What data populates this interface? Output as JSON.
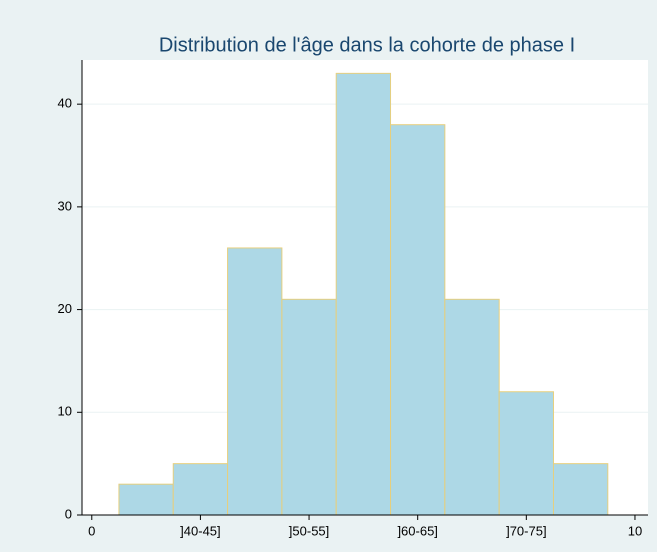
{
  "chart_data": {
    "type": "histogram",
    "title": "Distribution de l'âge dans la cohorte de phase I",
    "bins": [
      0.5,
      1.5,
      2.5,
      3.5,
      4.5,
      5.5,
      6.5,
      7.5,
      8.5,
      9.5
    ],
    "counts": [
      3,
      5,
      26,
      21,
      43,
      38,
      21,
      12,
      5
    ],
    "color": "#add8e6",
    "edgecolor": "#e6cf7e",
    "xlim": [
      -0.18,
      10.24
    ],
    "ylim": [
      0,
      44.3
    ],
    "xticks": [
      0,
      {
        "value": 2,
        "label": "]40-45]"
      },
      {
        "value": 4,
        "label": "]50-55]"
      },
      {
        "value": 6,
        "label": "]60-65]"
      },
      {
        "value": 8,
        "label": "]70-75]"
      },
      10
    ],
    "yticks": [
      0,
      10,
      20,
      30,
      40
    ],
    "grid": true
  }
}
